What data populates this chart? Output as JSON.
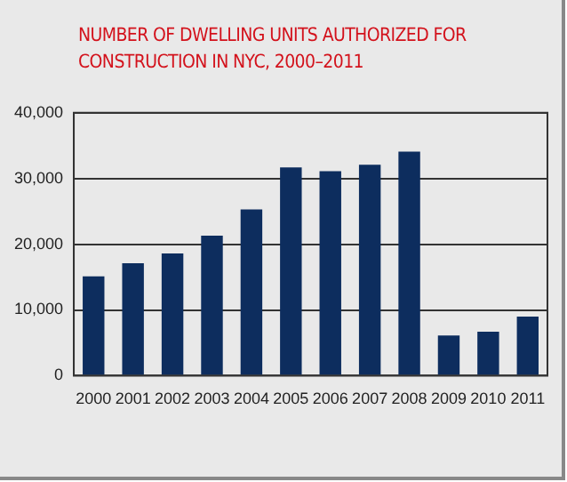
{
  "chart_data": {
    "type": "bar",
    "title": "NUMBER OF DWELLING UNITS AUTHORIZED FOR CONSTRUCTION IN NYC, 2000–2011",
    "categories": [
      "2000",
      "2001",
      "2002",
      "2003",
      "2004",
      "2005",
      "2006",
      "2007",
      "2008",
      "2009",
      "2010",
      "2011"
    ],
    "values": [
      15100,
      17100,
      18600,
      21300,
      25300,
      31700,
      31100,
      32100,
      34100,
      6100,
      6700,
      9000
    ],
    "color": "#0d2d5e",
    "ylim": [
      0,
      40000
    ],
    "yticks": [
      {
        "value": 0,
        "label": "0"
      },
      {
        "value": 10000,
        "label": "10,000"
      },
      {
        "value": 20000,
        "label": "20,000"
      },
      {
        "value": 30000,
        "label": "30,000"
      },
      {
        "value": 40000,
        "label": "40,000"
      }
    ],
    "grid": "y"
  }
}
